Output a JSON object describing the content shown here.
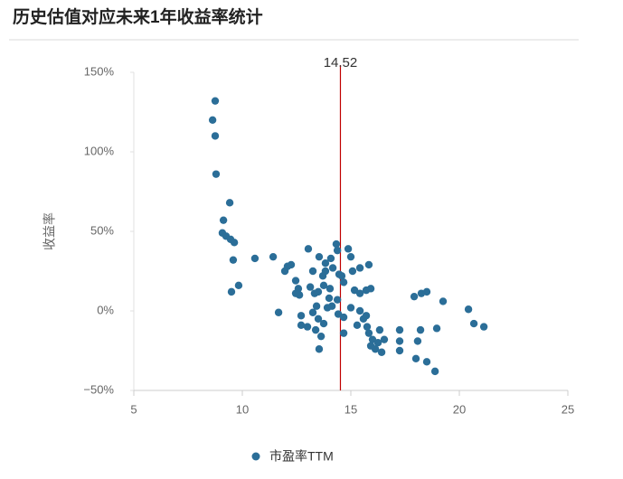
{
  "chart_data": {
    "type": "scatter",
    "title": "历史估值对应未来1年收益率统计",
    "ylabel": "收益率",
    "series": [
      {
        "name": "市盈率TTM",
        "color": "#2b6e98",
        "x": [
          8.75,
          8.63,
          8.75,
          8.79,
          9.42,
          9.13,
          9.08,
          9.25,
          9.46,
          9.63,
          9.58,
          9.83,
          9.5,
          10.58,
          11.42,
          11.96,
          12.08,
          12.25,
          11.67,
          12.46,
          12.58,
          12.63,
          13.04,
          13.54,
          13.83,
          13.83,
          13.71,
          13.25,
          13.13,
          13.33,
          12.71,
          12.71,
          13.0,
          13.25,
          13.42,
          13.5,
          13.38,
          13.54,
          13.63,
          13.75,
          13.92,
          14.0,
          14.04,
          14.17,
          14.08,
          14.33,
          14.38,
          14.46,
          14.38,
          14.42,
          14.67,
          14.67,
          14.67,
          14.58,
          14.88,
          15.0,
          15.08,
          15.17,
          15.0,
          15.42,
          15.29,
          15.42,
          15.42,
          15.83,
          15.71,
          15.92,
          15.71,
          15.58,
          15.83,
          16.0,
          15.92,
          16.13,
          16.33,
          16.25,
          16.42,
          16.54,
          15.75,
          17.25,
          17.25,
          17.25,
          17.92,
          18.25,
          18.5,
          18.21,
          18.08,
          18.0,
          18.5,
          18.88,
          18.96,
          19.25,
          20.42,
          20.67,
          21.13,
          12.46,
          13.5,
          13.75,
          14.13
        ],
        "values": [
          132,
          120,
          110,
          86,
          68,
          57,
          49,
          47,
          45,
          43,
          32,
          16,
          12,
          33,
          34,
          25,
          28,
          29,
          -1,
          19,
          14,
          10,
          39,
          34,
          30,
          25,
          22,
          25,
          15,
          11,
          -3,
          -9,
          -10,
          -1,
          3,
          -5,
          -12,
          -24,
          -16,
          -8,
          2,
          8,
          14,
          27,
          33,
          42,
          38,
          23,
          7,
          -2,
          -4,
          -14,
          18,
          22,
          39,
          34,
          25,
          13,
          2,
          0,
          -9,
          11,
          27,
          29,
          13,
          14,
          -3,
          -5,
          -14,
          -18,
          -22,
          -24,
          -12,
          -20,
          -26,
          -18,
          -10,
          -12,
          -19,
          -25,
          9,
          11,
          12,
          -12,
          -19,
          -30,
          -32,
          -38,
          -11,
          6,
          1,
          -8,
          -10,
          11,
          12,
          16,
          3
        ]
      }
    ],
    "reference_line": 14.52,
    "xlim": [
      5,
      25
    ],
    "xticks": [
      5,
      10,
      15,
      20,
      25
    ],
    "ylim": [
      -50,
      150
    ],
    "yticks": [
      {
        "value": -50,
        "label": "−50%"
      },
      {
        "value": 0,
        "label": "0%"
      },
      {
        "value": 50,
        "label": "50%"
      },
      {
        "value": 100,
        "label": "100%"
      },
      {
        "value": 150,
        "label": "150%"
      }
    ]
  }
}
